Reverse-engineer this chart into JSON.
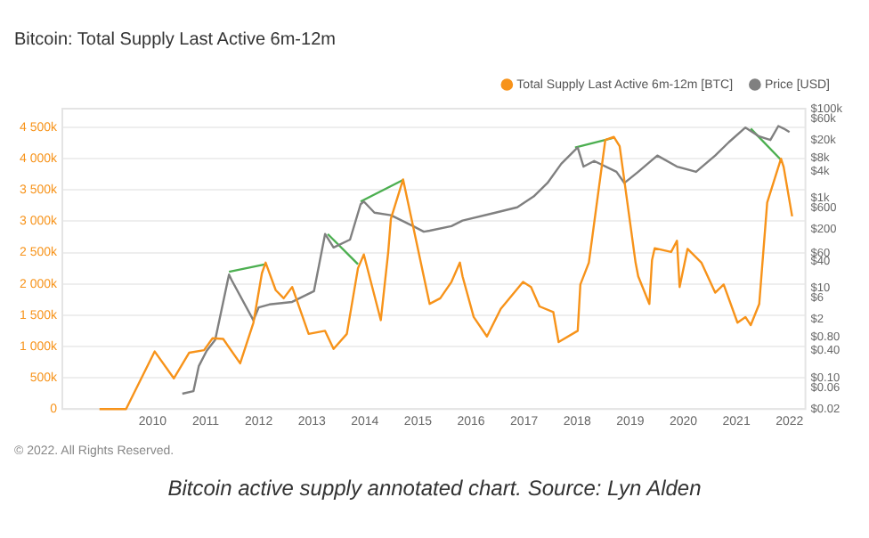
{
  "chart_data": {
    "type": "line",
    "title": "Bitcoin: Total Supply Last Active 6m-12m",
    "annotations": [
      "© 2022. All Rights Reserved.",
      "Bitcoin active supply annotated chart. Source: Lyn Alden"
    ],
    "xlim": [
      2008.3,
      2022.3
    ],
    "xticks": [
      2010,
      2011,
      2012,
      2013,
      2014,
      2015,
      2016,
      2017,
      2018,
      2019,
      2020,
      2021,
      2022
    ],
    "ylim": [
      0,
      4800000
    ],
    "yticks": [
      0,
      {
        "value": 500000,
        "label": "500k"
      },
      {
        "value": 1000000,
        "label": "1 000k"
      },
      {
        "value": 1500000,
        "label": "1 500k"
      },
      {
        "value": 2000000,
        "label": "2 000k"
      },
      {
        "value": 2500000,
        "label": "2 500k"
      },
      {
        "value": 3000000,
        "label": "3 000k"
      },
      {
        "value": 3500000,
        "label": "3 500k"
      },
      {
        "value": 4000000,
        "label": "4 000k"
      },
      {
        "value": 4500000,
        "label": "4 500k"
      }
    ],
    "y2lim": [
      0.02,
      100000
    ],
    "y2ticks": [
      {
        "value": 0.02,
        "label": "$0.02"
      },
      {
        "value": 0.06,
        "label": "$0.06"
      },
      {
        "value": 0.1,
        "label": "$0.10"
      },
      {
        "value": 0.4,
        "label": "$0.40"
      },
      {
        "value": 0.8,
        "label": "$0.80"
      },
      {
        "value": 2,
        "label": "$2"
      },
      {
        "value": 6,
        "label": "$6"
      },
      {
        "value": 10,
        "label": "$10"
      },
      {
        "value": 40,
        "label": "$40"
      },
      {
        "value": 60,
        "label": "$60"
      },
      {
        "value": 200,
        "label": "$200"
      },
      {
        "value": 600,
        "label": "$600"
      },
      {
        "value": 1000,
        "label": "$1k"
      },
      {
        "value": 4000,
        "label": "$4k"
      },
      {
        "value": 8000,
        "label": "$8k"
      },
      {
        "value": 20000,
        "label": "$20k"
      },
      {
        "value": 60000,
        "label": "$60k"
      },
      {
        "value": 100000,
        "label": "$100k"
      }
    ],
    "log": "y2",
    "grid": "y",
    "legend": "top right",
    "marker": "none",
    "line_style": "solid",
    "series": [
      {
        "name": "Total Supply Last Active 6m-12m [BTC]",
        "color": "#f7931a",
        "x": [
          2009.0,
          2009.5,
          2010.04,
          2010.4,
          2010.69,
          2010.97,
          2011.13,
          2011.33,
          2011.65,
          2011.9,
          2012.06,
          2012.13,
          2012.32,
          2012.47,
          2012.63,
          2012.94,
          2013.25,
          2013.41,
          2013.66,
          2013.87,
          2013.98,
          2014.3,
          2014.44,
          2014.49,
          2014.72,
          2015.22,
          2015.42,
          2015.63,
          2015.79,
          2015.84,
          2016.05,
          2016.3,
          2016.56,
          2016.98,
          2017.13,
          2017.29,
          2017.55,
          2017.65,
          2018.01,
          2018.06,
          2018.22,
          2018.53,
          2018.69,
          2018.8,
          2019.1,
          2019.15,
          2019.36,
          2019.41,
          2019.46,
          2019.77,
          2019.88,
          2019.93,
          2020.08,
          2020.34,
          2020.6,
          2020.76,
          2021.02,
          2021.17,
          2021.27,
          2021.43,
          2021.58,
          2021.84,
          2021.89,
          2022.05
        ],
        "values": [
          0,
          0,
          920000,
          490000,
          900000,
          940000,
          1130000,
          1120000,
          730000,
          1380000,
          2170000,
          2340000,
          1900000,
          1770000,
          1950000,
          1200000,
          1250000,
          960000,
          1200000,
          2250000,
          2470000,
          1420000,
          2510000,
          3040000,
          3670000,
          1680000,
          1770000,
          2030000,
          2340000,
          2120000,
          1470000,
          1160000,
          1600000,
          2030000,
          1950000,
          1640000,
          1550000,
          1070000,
          1250000,
          1990000,
          2340000,
          4300000,
          4350000,
          4200000,
          2340000,
          2120000,
          1680000,
          2380000,
          2570000,
          2510000,
          2690000,
          1950000,
          2560000,
          2340000,
          1860000,
          1990000,
          1380000,
          1470000,
          1340000,
          1680000,
          3300000,
          4000000,
          3870000,
          3080000
        ]
      },
      {
        "name": "Price [USD]",
        "color": "#808080",
        "axis": "y2",
        "x": [
          2010.56,
          2010.77,
          2010.87,
          2011.02,
          2011.18,
          2011.44,
          2011.49,
          2011.9,
          2012.0,
          2012.2,
          2012.63,
          2013.04,
          2013.25,
          2013.41,
          2013.72,
          2013.92,
          2013.98,
          2014.18,
          2014.49,
          2014.91,
          2015.11,
          2015.22,
          2015.63,
          2015.84,
          2016.46,
          2016.87,
          2017.18,
          2017.44,
          2017.7,
          2017.96,
          2018.01,
          2018.12,
          2018.32,
          2018.74,
          2018.89,
          2019.15,
          2019.51,
          2019.88,
          2020.24,
          2020.6,
          2020.86,
          2021.17,
          2021.43,
          2021.64,
          2021.79,
          2021.89,
          2022.0
        ],
        "values": [
          0.044,
          0.05,
          0.18,
          0.4,
          0.7,
          20,
          15,
          1.9,
          3.7,
          4.3,
          4.9,
          8.5,
          160,
          80,
          120,
          740,
          850,
          480,
          420,
          240,
          180,
          190,
          240,
          320,
          480,
          630,
          1100,
          2200,
          5900,
          12000,
          13600,
          5100,
          6800,
          3900,
          2200,
          3900,
          9000,
          5100,
          3900,
          9000,
          18000,
          38000,
          24000,
          20000,
          41000,
          36000,
          30000
        ]
      },
      {
        "color": "#4caf50",
        "axis": "y2",
        "x": [
          2011.44,
          2012.13
        ],
        "values": [
          23,
          34
        ]
      },
      {
        "color": "#4caf50",
        "axis": "y2",
        "x": [
          2013.3,
          2013.87
        ],
        "values": [
          160,
          34
        ]
      },
      {
        "color": "#4caf50",
        "axis": "y2",
        "x": [
          2013.92,
          2014.72
        ],
        "values": [
          850,
          2570
        ]
      },
      {
        "color": "#4caf50",
        "axis": "y2",
        "x": [
          2017.96,
          2018.66
        ],
        "values": [
          13600,
          21900
        ]
      },
      {
        "color": "#4caf50",
        "axis": "y2",
        "x": [
          2021.27,
          2021.84
        ],
        "values": [
          36000,
          7200
        ]
      }
    ]
  }
}
